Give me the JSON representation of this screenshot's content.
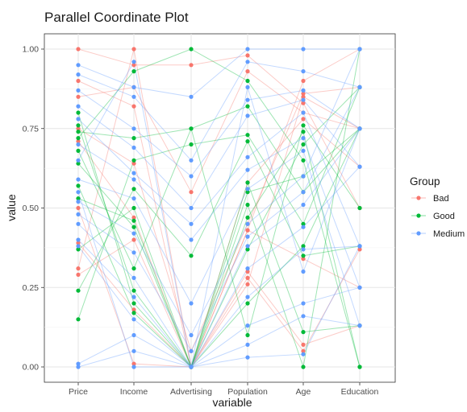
{
  "chart_data": {
    "type": "parallel-coordinates",
    "title": "Parallel Coordinate Plot",
    "xlabel": "variable",
    "ylabel": "value",
    "ylim": [
      0,
      1
    ],
    "y_ticks": [
      "0.00",
      "0.25",
      "0.50",
      "0.75",
      "1.00"
    ],
    "categories": [
      "Price",
      "Income",
      "Advertising",
      "Population",
      "Age",
      "Education"
    ],
    "grid": true,
    "legend": {
      "title": "Group",
      "placement": "right",
      "entries": [
        "Bad",
        "Good",
        "Medium"
      ]
    },
    "colors": {
      "Bad": "#F8766D",
      "Good": "#00BA38",
      "Medium": "#619CFF"
    },
    "series": [
      {
        "group": "Bad",
        "values": [
          1.0,
          0.95,
          0.95,
          0.98,
          0.83,
          0.5
        ]
      },
      {
        "group": "Bad",
        "values": [
          0.85,
          0.88,
          0.55,
          0.93,
          0.8,
          0.75
        ]
      },
      {
        "group": "Bad",
        "values": [
          0.75,
          0.64,
          0.05,
          0.45,
          0.86,
          0.88
        ]
      },
      {
        "group": "Bad",
        "values": [
          0.71,
          0.47,
          0.0,
          0.43,
          0.9,
          1.0
        ]
      },
      {
        "group": "Bad",
        "values": [
          0.9,
          0.82,
          0.0,
          0.43,
          0.34,
          0.25
        ]
      },
      {
        "group": "Bad",
        "values": [
          0.31,
          1.0,
          0.0,
          0.3,
          0.07,
          0.13
        ]
      },
      {
        "group": "Bad",
        "values": [
          0.29,
          0.4,
          0.0,
          0.28,
          0.05,
          0.37
        ]
      },
      {
        "group": "Bad",
        "values": [
          0.39,
          0.18,
          0.0,
          0.26,
          0.85,
          0.75
        ]
      },
      {
        "group": "Bad",
        "values": [
          0.5,
          0.01,
          0.0,
          0.58,
          0.78,
          0.63
        ]
      },
      {
        "group": "Good",
        "values": [
          0.72,
          0.93,
          1.0,
          0.9,
          0.65,
          0.0
        ]
      },
      {
        "group": "Good",
        "values": [
          0.74,
          0.72,
          0.75,
          0.82,
          0.55,
          0.75
        ]
      },
      {
        "group": "Good",
        "values": [
          0.15,
          0.65,
          0.7,
          0.73,
          0.45,
          0.88
        ]
      },
      {
        "group": "Good",
        "values": [
          0.24,
          0.56,
          0.35,
          0.71,
          0.35,
          0.38
        ]
      },
      {
        "group": "Good",
        "values": [
          0.37,
          0.5,
          0.0,
          0.58,
          0.11,
          0.13
        ]
      },
      {
        "group": "Good",
        "values": [
          0.53,
          0.46,
          0.0,
          0.51,
          0.0,
          1.0
        ]
      },
      {
        "group": "Good",
        "values": [
          0.64,
          0.44,
          0.0,
          0.2,
          0.38,
          0.75
        ]
      },
      {
        "group": "Good",
        "values": [
          0.68,
          0.31,
          0.75,
          0.1,
          0.76,
          0.5
        ]
      },
      {
        "group": "Good",
        "values": [
          0.76,
          0.24,
          0.0,
          0.47,
          0.74,
          0.0
        ]
      },
      {
        "group": "Good",
        "values": [
          0.8,
          0.2,
          0.0,
          0.55,
          0.6,
          0.75
        ]
      },
      {
        "group": "Good",
        "values": [
          0.57,
          0.17,
          0.0,
          0.37,
          0.7,
          0.88
        ]
      },
      {
        "group": "Medium",
        "values": [
          0.95,
          0.88,
          0.85,
          1.0,
          1.0,
          1.0
        ]
      },
      {
        "group": "Medium",
        "values": [
          0.92,
          0.85,
          0.65,
          0.96,
          0.93,
          0.88
        ]
      },
      {
        "group": "Medium",
        "values": [
          0.87,
          0.75,
          0.6,
          0.84,
          0.87,
          0.75
        ]
      },
      {
        "group": "Medium",
        "values": [
          0.82,
          0.69,
          0.5,
          0.79,
          0.84,
          0.63
        ]
      },
      {
        "group": "Medium",
        "values": [
          0.78,
          0.61,
          0.45,
          0.66,
          0.8,
          0.38
        ]
      },
      {
        "group": "Medium",
        "values": [
          0.7,
          0.59,
          0.4,
          0.62,
          0.72,
          0.25
        ]
      },
      {
        "group": "Medium",
        "values": [
          0.59,
          0.53,
          0.2,
          0.56,
          0.68,
          0.13
        ]
      },
      {
        "group": "Medium",
        "values": [
          0.52,
          0.42,
          0.1,
          0.45,
          0.6,
          1.0
        ]
      },
      {
        "group": "Medium",
        "values": [
          0.48,
          0.36,
          0.05,
          0.41,
          0.55,
          0.88
        ]
      },
      {
        "group": "Medium",
        "values": [
          0.45,
          0.28,
          0.0,
          0.38,
          0.51,
          0.75
        ]
      },
      {
        "group": "Medium",
        "values": [
          0.4,
          0.22,
          0.0,
          0.31,
          0.44,
          0.63
        ]
      },
      {
        "group": "Medium",
        "values": [
          0.38,
          0.15,
          0.0,
          0.22,
          0.37,
          0.38
        ]
      },
      {
        "group": "Medium",
        "values": [
          0.01,
          0.1,
          0.0,
          0.13,
          0.2,
          0.25
        ]
      },
      {
        "group": "Medium",
        "values": [
          0.0,
          0.05,
          0.0,
          0.07,
          0.16,
          0.13
        ]
      },
      {
        "group": "Medium",
        "values": [
          0.55,
          0.0,
          0.0,
          0.03,
          0.04,
          0.38
        ]
      },
      {
        "group": "Medium",
        "values": [
          0.65,
          0.96,
          0.0,
          0.88,
          0.3,
          0.75
        ]
      }
    ]
  }
}
